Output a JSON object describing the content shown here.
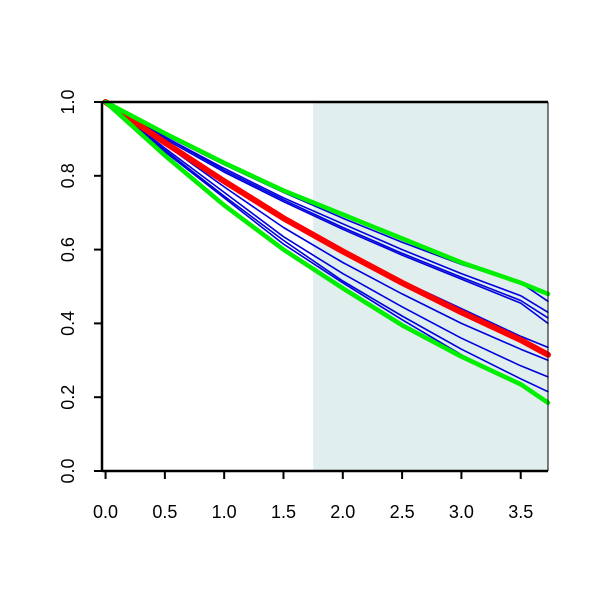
{
  "chart_data": {
    "type": "line",
    "title": "",
    "xlabel": "",
    "ylabel": "",
    "xlim": [
      -0.03,
      3.73
    ],
    "ylim": [
      0.0,
      1.0
    ],
    "grid": false,
    "legend": "none",
    "x_ticks": [
      "0.0",
      "0.5",
      "1.0",
      "1.5",
      "2.0",
      "2.5",
      "3.0",
      "3.5"
    ],
    "y_ticks": [
      "0.0",
      "0.2",
      "0.4",
      "0.6",
      "0.8",
      "1.0"
    ],
    "shaded_region": {
      "x_start": 1.75,
      "x_end": 3.73,
      "color": "#e0eeed"
    },
    "colors": {
      "envelope": "#00ee00",
      "median": "#ff0000",
      "samples": "#0000dd",
      "frame": "#000000"
    },
    "x": [
      0.0,
      0.5,
      1.0,
      1.5,
      2.0,
      2.5,
      3.0,
      3.5,
      3.73
    ],
    "series": [
      {
        "role": "sample",
        "values": [
          1.0,
          0.91,
          0.83,
          0.755,
          0.685,
          0.62,
          0.56,
          0.51,
          0.46
        ]
      },
      {
        "role": "sample",
        "values": [
          1.0,
          0.905,
          0.82,
          0.74,
          0.67,
          0.6,
          0.535,
          0.475,
          0.43
        ]
      },
      {
        "role": "sample",
        "values": [
          1.0,
          0.905,
          0.815,
          0.735,
          0.66,
          0.59,
          0.525,
          0.462,
          0.415
        ]
      },
      {
        "role": "sample",
        "values": [
          1.0,
          0.9,
          0.81,
          0.73,
          0.655,
          0.585,
          0.52,
          0.455,
          0.4
        ]
      },
      {
        "role": "sample",
        "values": [
          1.0,
          0.89,
          0.785,
          0.69,
          0.595,
          0.515,
          0.44,
          0.365,
          0.335
        ]
      },
      {
        "role": "sample",
        "values": [
          1.0,
          0.885,
          0.77,
          0.66,
          0.565,
          0.48,
          0.4,
          0.33,
          0.3
        ]
      },
      {
        "role": "sample",
        "values": [
          1.0,
          0.875,
          0.755,
          0.635,
          0.535,
          0.445,
          0.36,
          0.285,
          0.255
        ]
      },
      {
        "role": "sample",
        "values": [
          1.0,
          0.87,
          0.745,
          0.625,
          0.515,
          0.42,
          0.33,
          0.25,
          0.215
        ]
      },
      {
        "role": "sample",
        "values": [
          1.0,
          0.865,
          0.74,
          0.615,
          0.51,
          0.41,
          0.315,
          0.235,
          0.19
        ]
      },
      {
        "role": "median",
        "values": [
          1.0,
          0.89,
          0.785,
          0.685,
          0.595,
          0.51,
          0.43,
          0.355,
          0.315
        ]
      },
      {
        "role": "upper",
        "values": [
          1.0,
          0.915,
          0.835,
          0.76,
          0.695,
          0.63,
          0.565,
          0.51,
          0.48
        ]
      },
      {
        "role": "lower",
        "values": [
          1.0,
          0.855,
          0.72,
          0.6,
          0.495,
          0.395,
          0.31,
          0.235,
          0.185
        ]
      }
    ]
  }
}
